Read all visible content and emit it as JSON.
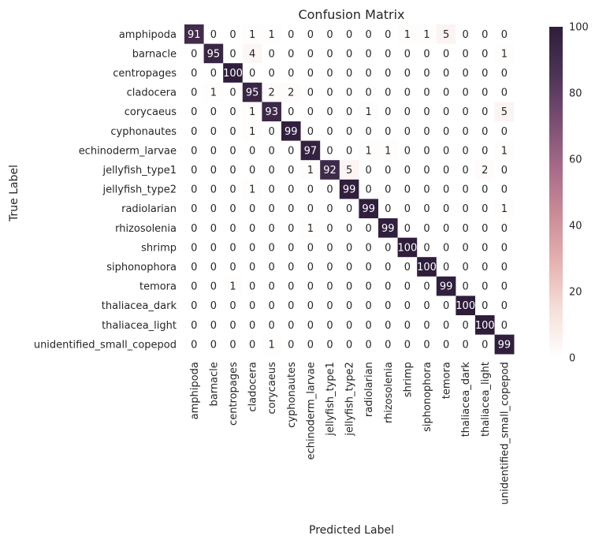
{
  "chart_data": {
    "type": "heatmap",
    "title": "Confusion Matrix",
    "xlabel": "Predicted Label",
    "ylabel": "True Label",
    "labels": [
      "amphipoda",
      "barnacle",
      "centropages",
      "cladocera",
      "corycaeus",
      "cyphonautes",
      "echinoderm_larvae",
      "jellyfish_type1",
      "jellyfish_type2",
      "radiolarian",
      "rhizosolenia",
      "shrimp",
      "siphonophora",
      "temora",
      "thaliacea_dark",
      "thaliacea_light",
      "unidentified_small_copepod"
    ],
    "matrix": [
      [
        91,
        0,
        0,
        1,
        1,
        0,
        0,
        0,
        0,
        0,
        0,
        1,
        1,
        5,
        0,
        0,
        0
      ],
      [
        0,
        95,
        0,
        4,
        0,
        0,
        0,
        0,
        0,
        0,
        0,
        0,
        0,
        0,
        0,
        0,
        1
      ],
      [
        0,
        0,
        100,
        0,
        0,
        0,
        0,
        0,
        0,
        0,
        0,
        0,
        0,
        0,
        0,
        0,
        0
      ],
      [
        0,
        1,
        0,
        95,
        2,
        2,
        0,
        0,
        0,
        0,
        0,
        0,
        0,
        0,
        0,
        0,
        0
      ],
      [
        0,
        0,
        0,
        1,
        93,
        0,
        0,
        0,
        0,
        1,
        0,
        0,
        0,
        0,
        0,
        0,
        5
      ],
      [
        0,
        0,
        0,
        1,
        0,
        99,
        0,
        0,
        0,
        0,
        0,
        0,
        0,
        0,
        0,
        0,
        0
      ],
      [
        0,
        0,
        0,
        0,
        0,
        0,
        97,
        0,
        0,
        1,
        1,
        0,
        0,
        0,
        0,
        0,
        1
      ],
      [
        0,
        0,
        0,
        0,
        0,
        0,
        1,
        92,
        5,
        0,
        0,
        0,
        0,
        0,
        0,
        2,
        0
      ],
      [
        0,
        0,
        0,
        1,
        0,
        0,
        0,
        0,
        99,
        0,
        0,
        0,
        0,
        0,
        0,
        0,
        0
      ],
      [
        0,
        0,
        0,
        0,
        0,
        0,
        0,
        0,
        0,
        99,
        0,
        0,
        0,
        0,
        0,
        0,
        1
      ],
      [
        0,
        0,
        0,
        0,
        0,
        0,
        1,
        0,
        0,
        0,
        99,
        0,
        0,
        0,
        0,
        0,
        0
      ],
      [
        0,
        0,
        0,
        0,
        0,
        0,
        0,
        0,
        0,
        0,
        0,
        100,
        0,
        0,
        0,
        0,
        0
      ],
      [
        0,
        0,
        0,
        0,
        0,
        0,
        0,
        0,
        0,
        0,
        0,
        0,
        100,
        0,
        0,
        0,
        0
      ],
      [
        0,
        0,
        1,
        0,
        0,
        0,
        0,
        0,
        0,
        0,
        0,
        0,
        0,
        99,
        0,
        0,
        0
      ],
      [
        0,
        0,
        0,
        0,
        0,
        0,
        0,
        0,
        0,
        0,
        0,
        0,
        0,
        0,
        100,
        0,
        0
      ],
      [
        0,
        0,
        0,
        0,
        0,
        0,
        0,
        0,
        0,
        0,
        0,
        0,
        0,
        0,
        0,
        100,
        0
      ],
      [
        0,
        0,
        0,
        0,
        1,
        0,
        0,
        0,
        0,
        0,
        0,
        0,
        0,
        0,
        0,
        0,
        99
      ]
    ],
    "vmin": 0,
    "vmax": 100,
    "colorbar_ticks": [
      0,
      20,
      40,
      60,
      80,
      100
    ],
    "colormap": [
      "#ffffff",
      "#f5e0da",
      "#e6b3b0",
      "#cc8c98",
      "#a86b88",
      "#7a4e74",
      "#4d3356",
      "#2e1e3b"
    ],
    "annotation_text_light": "#ffffff",
    "annotation_text_dark": "#262626",
    "text_color": "#262626"
  }
}
